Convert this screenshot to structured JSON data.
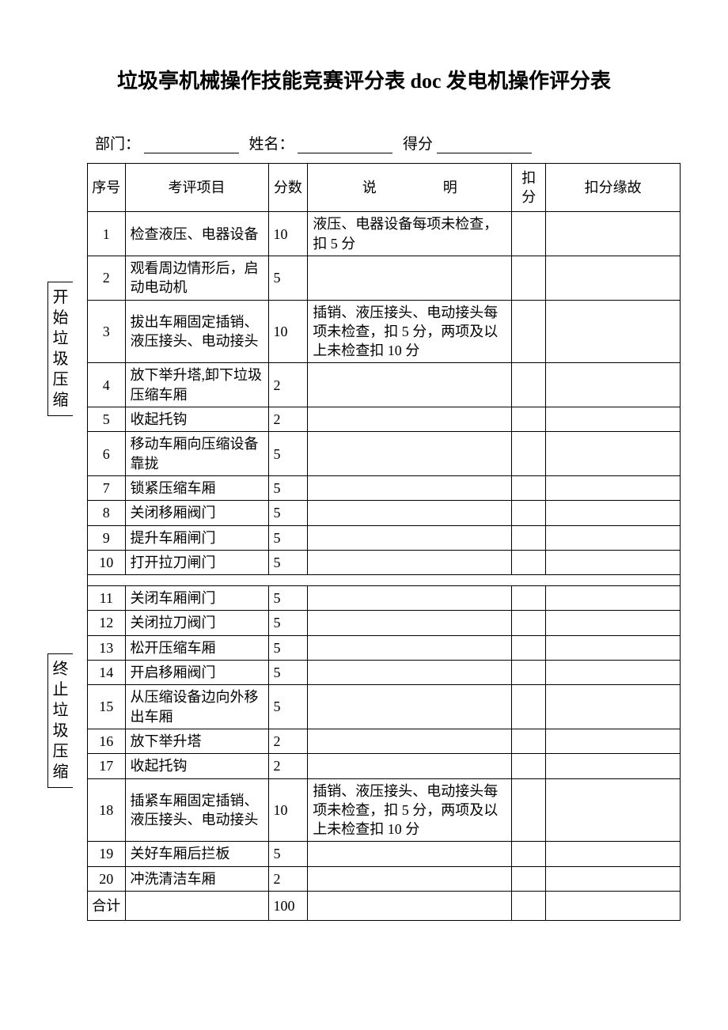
{
  "title": "垃圾亭机械操作技能竞赛评分表 doc 发电机操作评分表",
  "form": {
    "dept_label": "部门：",
    "name_label": "姓名：",
    "score_label": "得分"
  },
  "side_labels": {
    "start": "开始垃圾压缩",
    "stop": "终止垃圾压缩"
  },
  "headers": {
    "seq": "序号",
    "item": "考评项目",
    "score": "分数",
    "desc": "说　　明",
    "deduct": "扣分",
    "reason": "扣分缘故"
  },
  "rows_top": [
    {
      "seq": "1",
      "item": "检查液压、电器设备",
      "score": "10",
      "desc": "液压、电器设备每项未检查，扣 5 分"
    },
    {
      "seq": "2",
      "item": "观看周边情形后，启动电动机",
      "score": "5",
      "desc": ""
    },
    {
      "seq": "3",
      "item": "拔出车厢固定插销、液压接头、电动接头",
      "score": "10",
      "desc": "插销、液压接头、电动接头每项未检查，扣 5 分，两项及以上未检查扣 10 分"
    },
    {
      "seq": "4",
      "item": "放下举升塔,卸下垃圾压缩车厢",
      "score": "2",
      "desc": ""
    },
    {
      "seq": "5",
      "item": "收起托钩",
      "score": "2",
      "desc": ""
    },
    {
      "seq": "6",
      "item": "移动车厢向压缩设备靠拢",
      "score": "5",
      "desc": ""
    },
    {
      "seq": "7",
      "item": "锁紧压缩车厢",
      "score": "5",
      "desc": ""
    },
    {
      "seq": "8",
      "item": "关闭移厢阀门",
      "score": "5",
      "desc": ""
    },
    {
      "seq": "9",
      "item": "提升车厢闸门",
      "score": "5",
      "desc": ""
    },
    {
      "seq": "10",
      "item": "打开拉刀闸门",
      "score": "5",
      "desc": ""
    }
  ],
  "rows_bottom": [
    {
      "seq": "11",
      "item": "关闭车厢闸门",
      "score": "5",
      "desc": ""
    },
    {
      "seq": "12",
      "item": "关闭拉刀阀门",
      "score": "5",
      "desc": ""
    },
    {
      "seq": "13",
      "item": "松开压缩车厢",
      "score": "5",
      "desc": ""
    },
    {
      "seq": "14",
      "item": "开启移厢阀门",
      "score": "5",
      "desc": ""
    },
    {
      "seq": "15",
      "item": "从压缩设备边向外移出车厢",
      "score": "5",
      "desc": ""
    },
    {
      "seq": "16",
      "item": "放下举升塔",
      "score": "2",
      "desc": ""
    },
    {
      "seq": "17",
      "item": "收起托钩",
      "score": "2",
      "desc": ""
    },
    {
      "seq": "18",
      "item": "插紧车厢固定插销、液压接头、电动接头",
      "score": "10",
      "desc": "插销、液压接头、电动接头每项未检查，扣 5 分，两项及以上未检查扣 10 分"
    },
    {
      "seq": "19",
      "item": "关好车厢后拦板",
      "score": "5",
      "desc": ""
    },
    {
      "seq": "20",
      "item": "冲洗清洁车厢",
      "score": "2",
      "desc": ""
    }
  ],
  "total": {
    "label": "合计",
    "value": "100"
  }
}
